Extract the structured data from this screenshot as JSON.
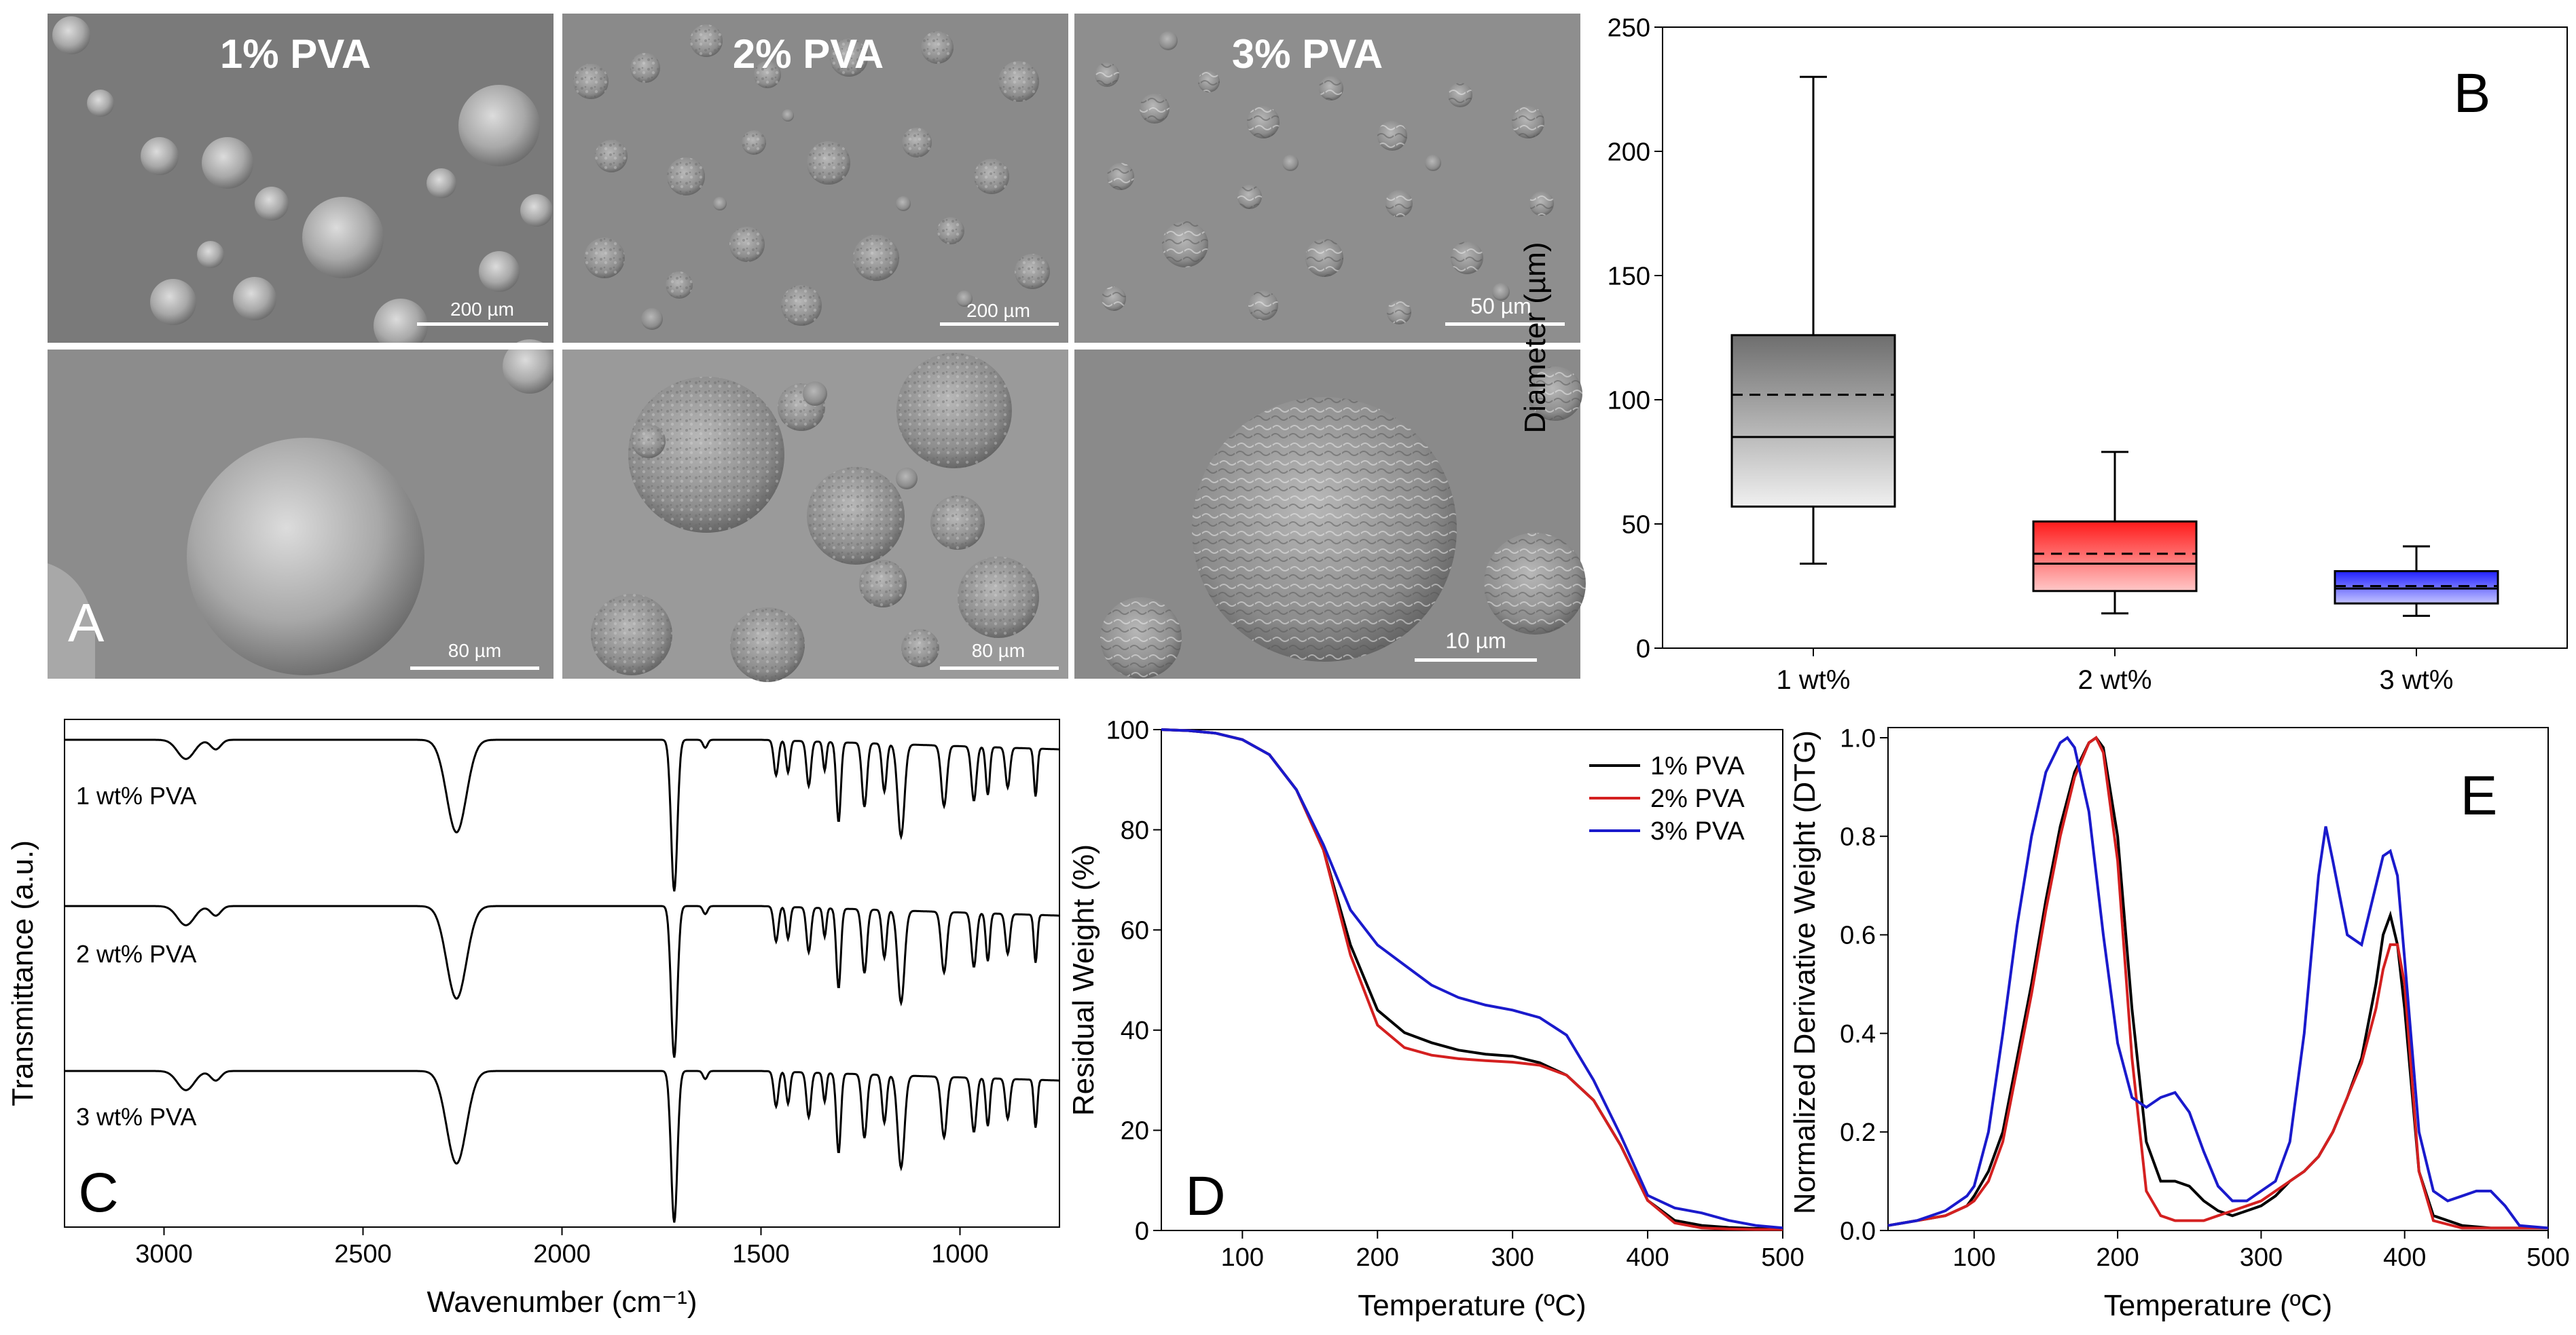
{
  "panel_a": {
    "letter": "A",
    "columns": [
      {
        "label": "1% PVA",
        "top_scale": "200 µm",
        "bottom_scale": "80 µm"
      },
      {
        "label": "2% PVA",
        "top_scale": "200 µm",
        "bottom_scale": "80 µm"
      },
      {
        "label": "3% PVA",
        "top_scale": "50 µm",
        "bottom_scale": "10 µm"
      }
    ]
  },
  "chart_data": [
    {
      "id": "B",
      "type": "box",
      "panel_letter": "B",
      "categories": [
        "1 wt%",
        "2 wt%",
        "3 wt%"
      ],
      "ylabel": "Diameter (µm)",
      "ylim": [
        0,
        250
      ],
      "yticks": [
        0,
        50,
        100,
        150,
        200,
        250
      ],
      "boxes": [
        {
          "min": 34,
          "q1": 57,
          "median": 85,
          "mean": 102,
          "q3": 126,
          "max": 230,
          "color_top": "#6e6e6e",
          "color_bottom": "#f0f0f0"
        },
        {
          "min": 14,
          "q1": 23,
          "median": 34,
          "mean": 38,
          "q3": 51,
          "max": 79,
          "color_top": "#ff1a1a",
          "color_bottom": "#ffc8c8"
        },
        {
          "min": 13,
          "q1": 18,
          "median": 24,
          "mean": 25,
          "q3": 31,
          "max": 41,
          "color_top": "#2020ff",
          "color_bottom": "#c4c4ff"
        }
      ]
    },
    {
      "id": "C",
      "type": "line",
      "panel_letter": "C",
      "xlabel": "Wavenumber (cm⁻¹)",
      "ylabel": "Transmittance (a.u.)",
      "xlim": [
        3250,
        750
      ],
      "xticks": [
        3000,
        2500,
        2000,
        1500,
        1000
      ],
      "series": [
        {
          "name": "1 wt% PVA",
          "label": "1 wt% PVA",
          "offset": 2
        },
        {
          "name": "2 wt% PVA",
          "label": "2 wt% PVA",
          "offset": 1
        },
        {
          "name": "3 wt% PVA",
          "label": "3 wt% PVA",
          "offset": 0
        }
      ],
      "peaks": [
        {
          "wn": 2945,
          "depth": 0.12,
          "width": 30
        },
        {
          "wn": 2870,
          "depth": 0.06,
          "width": 18
        },
        {
          "wn": 2265,
          "depth": 0.58,
          "width": 35
        },
        {
          "wn": 1718,
          "depth": 0.95,
          "width": 11
        },
        {
          "wn": 1640,
          "depth": 0.05,
          "width": 8
        },
        {
          "wn": 1462,
          "depth": 0.22,
          "width": 8
        },
        {
          "wn": 1432,
          "depth": 0.2,
          "width": 7
        },
        {
          "wn": 1380,
          "depth": 0.28,
          "width": 8
        },
        {
          "wn": 1340,
          "depth": 0.18,
          "width": 6
        },
        {
          "wn": 1305,
          "depth": 0.5,
          "width": 8
        },
        {
          "wn": 1240,
          "depth": 0.4,
          "width": 9
        },
        {
          "wn": 1190,
          "depth": 0.3,
          "width": 8
        },
        {
          "wn": 1148,
          "depth": 0.58,
          "width": 12
        },
        {
          "wn": 1040,
          "depth": 0.38,
          "width": 10
        },
        {
          "wn": 965,
          "depth": 0.34,
          "width": 9
        },
        {
          "wn": 930,
          "depth": 0.3,
          "width": 7
        },
        {
          "wn": 880,
          "depth": 0.25,
          "width": 8
        },
        {
          "wn": 810,
          "depth": 0.3,
          "width": 6
        }
      ]
    },
    {
      "id": "D",
      "type": "line",
      "panel_letter": "D",
      "xlabel": "Temperature (ºC)",
      "ylabel": "Residual Weight (%)",
      "xlim": [
        40,
        500
      ],
      "ylim": [
        0,
        100
      ],
      "xticks": [
        100,
        200,
        300,
        400,
        500
      ],
      "yticks": [
        0,
        20,
        40,
        60,
        80,
        100
      ],
      "legend_position": "top-right",
      "series": [
        {
          "name": "1% PVA",
          "color": "#000000",
          "x": [
            40,
            60,
            80,
            100,
            120,
            140,
            160,
            180,
            200,
            220,
            240,
            260,
            280,
            300,
            320,
            340,
            360,
            380,
            400,
            420,
            440,
            460,
            480,
            500
          ],
          "y": [
            100,
            99.8,
            99.3,
            98,
            95,
            88,
            76,
            57,
            44,
            39.5,
            37.5,
            36,
            35.2,
            34.8,
            33.5,
            31,
            26,
            17,
            6,
            2,
            1,
            0.6,
            0.4,
            0.3
          ]
        },
        {
          "name": "2% PVA",
          "color": "#d42020",
          "x": [
            40,
            60,
            80,
            100,
            120,
            140,
            160,
            180,
            200,
            220,
            240,
            260,
            280,
            300,
            320,
            340,
            360,
            380,
            400,
            420,
            440,
            460,
            480,
            500
          ],
          "y": [
            100,
            99.8,
            99.3,
            98,
            95,
            88,
            76,
            55,
            41,
            36.5,
            35,
            34.3,
            33.9,
            33.6,
            33,
            31,
            26,
            17,
            6,
            1.5,
            0.5,
            0.3,
            0.2,
            0.2
          ]
        },
        {
          "name": "3% PVA",
          "color": "#1a1acc",
          "x": [
            40,
            60,
            80,
            100,
            120,
            140,
            160,
            180,
            200,
            220,
            240,
            260,
            280,
            300,
            320,
            340,
            360,
            380,
            400,
            420,
            440,
            460,
            480,
            500
          ],
          "y": [
            100,
            99.8,
            99.3,
            98,
            95,
            88,
            77,
            64,
            57,
            53,
            49,
            46.5,
            45,
            44,
            42.5,
            39,
            30,
            19,
            7,
            4.5,
            3.5,
            2,
            1,
            0.5
          ]
        }
      ]
    },
    {
      "id": "E",
      "type": "line",
      "panel_letter": "E",
      "xlabel": "Temperature (ºC)",
      "ylabel": "Normalized Derivative Weight (DTG)",
      "xlim": [
        40,
        500
      ],
      "ylim": [
        0,
        1.0
      ],
      "xticks": [
        100,
        200,
        300,
        400,
        500
      ],
      "yticks": [
        0.0,
        0.2,
        0.4,
        0.6,
        0.8,
        1.0
      ],
      "series": [
        {
          "name": "1% PVA",
          "color": "#000000",
          "x": [
            40,
            60,
            80,
            95,
            100,
            110,
            120,
            130,
            140,
            150,
            160,
            170,
            180,
            185,
            190,
            200,
            210,
            220,
            230,
            240,
            250,
            260,
            270,
            280,
            290,
            300,
            310,
            320,
            330,
            340,
            350,
            360,
            370,
            380,
            385,
            390,
            395,
            400,
            410,
            420,
            440,
            460,
            480,
            500
          ],
          "y": [
            0.01,
            0.02,
            0.03,
            0.05,
            0.07,
            0.12,
            0.2,
            0.35,
            0.5,
            0.67,
            0.82,
            0.93,
            0.99,
            1.0,
            0.98,
            0.8,
            0.45,
            0.18,
            0.1,
            0.1,
            0.09,
            0.06,
            0.04,
            0.03,
            0.04,
            0.05,
            0.07,
            0.1,
            0.12,
            0.15,
            0.2,
            0.27,
            0.35,
            0.5,
            0.6,
            0.64,
            0.58,
            0.45,
            0.12,
            0.03,
            0.01,
            0.005,
            0.005,
            0.005
          ]
        },
        {
          "name": "2% PVA",
          "color": "#d42020",
          "x": [
            40,
            60,
            80,
            95,
            100,
            110,
            120,
            130,
            140,
            150,
            160,
            170,
            180,
            185,
            190,
            200,
            210,
            220,
            230,
            240,
            250,
            260,
            270,
            280,
            290,
            300,
            310,
            320,
            330,
            340,
            350,
            360,
            370,
            380,
            385,
            390,
            395,
            400,
            410,
            420,
            440,
            460,
            480,
            500
          ],
          "y": [
            0.01,
            0.02,
            0.03,
            0.05,
            0.06,
            0.1,
            0.18,
            0.33,
            0.48,
            0.65,
            0.8,
            0.92,
            0.99,
            1.0,
            0.97,
            0.75,
            0.35,
            0.08,
            0.03,
            0.02,
            0.02,
            0.02,
            0.03,
            0.04,
            0.05,
            0.06,
            0.08,
            0.1,
            0.12,
            0.15,
            0.2,
            0.27,
            0.34,
            0.45,
            0.53,
            0.58,
            0.58,
            0.5,
            0.12,
            0.02,
            0.005,
            0.005,
            0.005,
            0.005
          ]
        },
        {
          "name": "3% PVA",
          "color": "#1a1acc",
          "x": [
            40,
            60,
            80,
            95,
            100,
            110,
            120,
            130,
            140,
            150,
            160,
            165,
            170,
            180,
            190,
            200,
            210,
            220,
            230,
            240,
            250,
            260,
            270,
            280,
            290,
            300,
            310,
            320,
            330,
            340,
            345,
            350,
            360,
            370,
            380,
            385,
            390,
            395,
            400,
            410,
            420,
            430,
            440,
            450,
            460,
            470,
            480,
            500
          ],
          "y": [
            0.01,
            0.02,
            0.04,
            0.07,
            0.09,
            0.2,
            0.4,
            0.62,
            0.8,
            0.93,
            0.99,
            1.0,
            0.98,
            0.85,
            0.6,
            0.38,
            0.27,
            0.25,
            0.27,
            0.28,
            0.24,
            0.16,
            0.09,
            0.06,
            0.06,
            0.08,
            0.1,
            0.18,
            0.4,
            0.72,
            0.82,
            0.75,
            0.6,
            0.58,
            0.7,
            0.76,
            0.77,
            0.72,
            0.55,
            0.2,
            0.08,
            0.06,
            0.07,
            0.08,
            0.08,
            0.05,
            0.01,
            0.005
          ]
        }
      ]
    }
  ]
}
